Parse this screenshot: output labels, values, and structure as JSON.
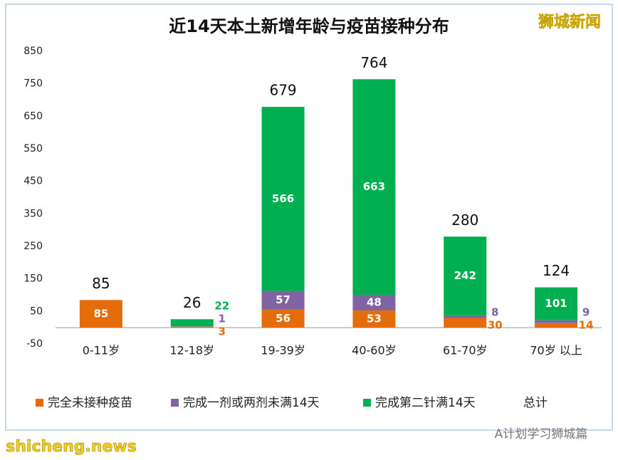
{
  "chart_data": {
    "type": "stacked-bar",
    "title": "近14天本土新增年龄与疫苗接种分布",
    "categories": [
      "0-11岁",
      "12-18岁",
      "19-39岁",
      "40-60岁",
      "61-70岁",
      "70岁 以上"
    ],
    "series": [
      {
        "name": "完全未接种疫苗",
        "color": "#e46c0a",
        "values": [
          85,
          3,
          56,
          53,
          30,
          14
        ]
      },
      {
        "name": "完成一剂或两剂未满14天",
        "color": "#8064a2",
        "values": [
          null,
          1,
          57,
          48,
          8,
          9
        ]
      },
      {
        "name": "完成第二针满14天",
        "color": "#00b050",
        "values": [
          null,
          22,
          566,
          663,
          242,
          101
        ]
      }
    ],
    "totals": {
      "name": "总计",
      "values": [
        85,
        26,
        679,
        764,
        280,
        124
      ]
    },
    "ylim": [
      -50,
      850
    ],
    "yticks": [
      -50,
      50,
      150,
      250,
      350,
      450,
      550,
      650,
      750,
      850
    ],
    "legend": "bottom"
  },
  "watermarks": {
    "top_right": "狮城新闻",
    "bottom_right": "A计划学习狮城篇",
    "bottom_left": "shicheng.news"
  }
}
